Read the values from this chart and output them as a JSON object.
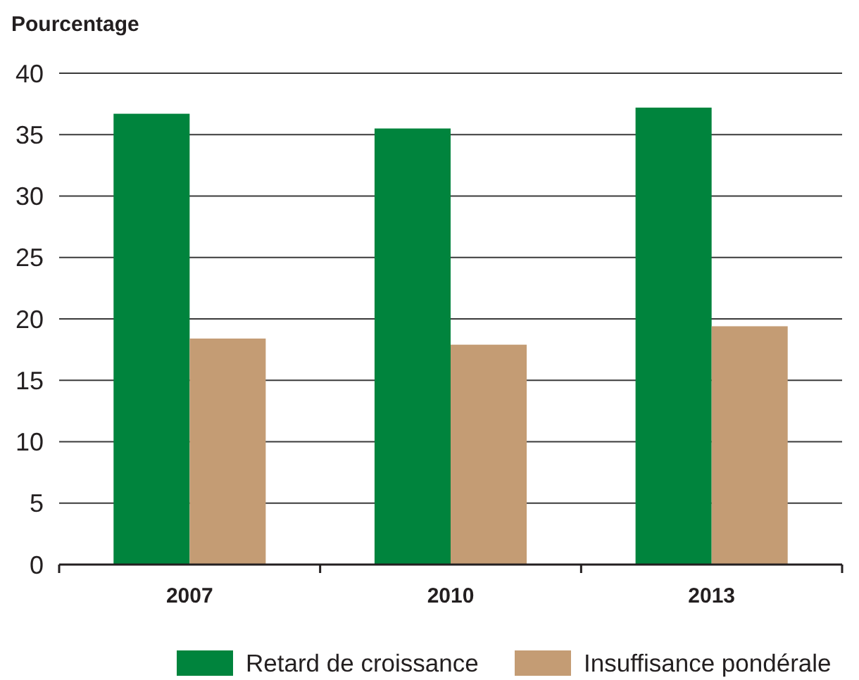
{
  "chart_data": {
    "type": "bar",
    "ylabel": "Pourcentage",
    "categories": [
      "2007",
      "2010",
      "2013"
    ],
    "series": [
      {
        "name": "Retard de croissance",
        "color": "#00843d",
        "values": [
          36.7,
          35.5,
          37.2
        ]
      },
      {
        "name": "Insuffisance pondérale",
        "color": "#c49c74",
        "values": [
          18.4,
          17.9,
          19.4
        ]
      }
    ],
    "ylim": [
      0,
      40
    ],
    "yticks": [
      0,
      5,
      10,
      15,
      20,
      25,
      30,
      35,
      40
    ],
    "grid": "y",
    "legend": "bottom"
  }
}
